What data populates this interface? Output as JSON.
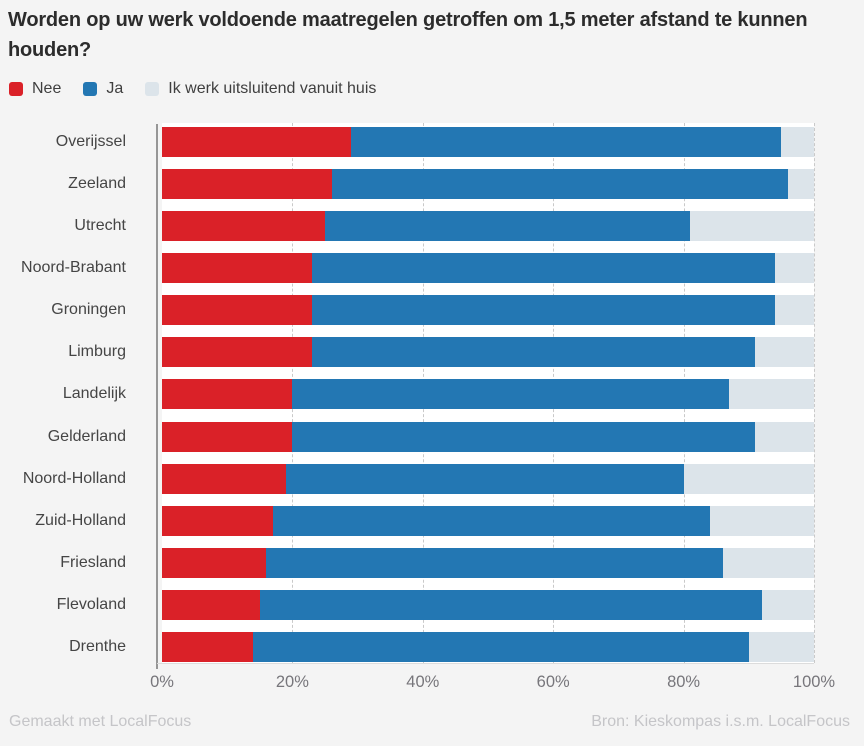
{
  "title": "Worden op uw werk voldoende maatregelen getroffen om 1,5 meter afstand te kunnen houden?",
  "footer": {
    "left": "Gemaakt met LocalFocus",
    "right": "Bron: Kieskompas i.s.m. LocalFocus"
  },
  "colors": {
    "nee": "#da2128",
    "ja": "#2377b3",
    "huis": "#dce4ea",
    "background": "#f4f4f4",
    "plot_background": "#ffffff",
    "axis_line": "#969696",
    "gridline": "#c9c9c9",
    "title_text": "#2c2c2c",
    "tick_text": "#77767b",
    "footer_text": "#c5c5c8"
  },
  "chart_data": {
    "type": "bar",
    "orientation": "horizontal",
    "stacked": true,
    "unit": "%",
    "title": "Worden op uw werk voldoende maatregelen getroffen om 1,5 meter afstand te kunnen houden?",
    "legend_position": "top",
    "grid": "vertical-dashed",
    "xlim": [
      0,
      100
    ],
    "xticks": [
      "0%",
      "20%",
      "40%",
      "60%",
      "80%",
      "100%"
    ],
    "xtick_values": [
      0,
      20,
      40,
      60,
      80,
      100
    ],
    "categories": [
      "Overijssel",
      "Zeeland",
      "Utrecht",
      "Noord-Brabant",
      "Groningen",
      "Limburg",
      "Landelijk",
      "Gelderland",
      "Noord-Holland",
      "Zuid-Holland",
      "Friesland",
      "Flevoland",
      "Drenthe"
    ],
    "series": [
      {
        "name": "Nee",
        "key": "nee",
        "color": "#da2128",
        "values": [
          29,
          26,
          25,
          23,
          23,
          23,
          20,
          20,
          19,
          17,
          16,
          15,
          14
        ]
      },
      {
        "name": "Ja",
        "key": "ja",
        "color": "#2377b3",
        "values": [
          66,
          70,
          56,
          71,
          71,
          68,
          67,
          71,
          61,
          67,
          70,
          77,
          76
        ]
      },
      {
        "name": "Ik werk uitsluitend vanuit huis",
        "key": "huis",
        "color": "#dce4ea",
        "values": [
          5,
          4,
          19,
          6,
          6,
          9,
          13,
          9,
          20,
          16,
          14,
          8,
          10
        ]
      }
    ]
  }
}
